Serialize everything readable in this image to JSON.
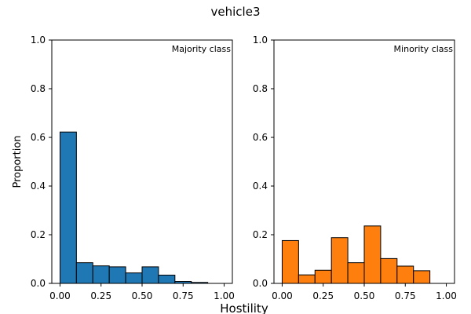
{
  "figure": {
    "title": "vehicle3",
    "xlabel": "Hostility"
  },
  "chart_data": [
    {
      "type": "bar",
      "annotation": "Majority class",
      "ylabel": "Proportion",
      "color": "#1f77b4",
      "bin_edges": [
        0.0,
        0.1,
        0.2,
        0.3,
        0.4,
        0.5,
        0.6,
        0.7,
        0.8,
        0.9
      ],
      "values": [
        0.622,
        0.085,
        0.072,
        0.068,
        0.043,
        0.068,
        0.034,
        0.008,
        0.004
      ],
      "xlim": [
        -0.05,
        1.05
      ],
      "ylim": [
        0,
        1.0
      ],
      "xticks": [
        "0.00",
        "0.25",
        "0.50",
        "0.75",
        "1.00"
      ],
      "yticks": [
        "0.0",
        "0.2",
        "0.4",
        "0.6",
        "0.8",
        "1.0"
      ]
    },
    {
      "type": "bar",
      "annotation": "Minority class",
      "ylabel": "",
      "color": "#ff7f0e",
      "bin_edges": [
        0.0,
        0.1,
        0.2,
        0.3,
        0.4,
        0.5,
        0.6,
        0.7,
        0.8,
        0.9
      ],
      "values": [
        0.176,
        0.035,
        0.054,
        0.188,
        0.085,
        0.236,
        0.102,
        0.071,
        0.052
      ],
      "xlim": [
        -0.05,
        1.05
      ],
      "ylim": [
        0,
        1.0
      ],
      "xticks": [
        "0.00",
        "0.25",
        "0.50",
        "0.75",
        "1.00"
      ],
      "yticks": [
        "0.0",
        "0.2",
        "0.4",
        "0.6",
        "0.8",
        "1.0"
      ]
    }
  ]
}
